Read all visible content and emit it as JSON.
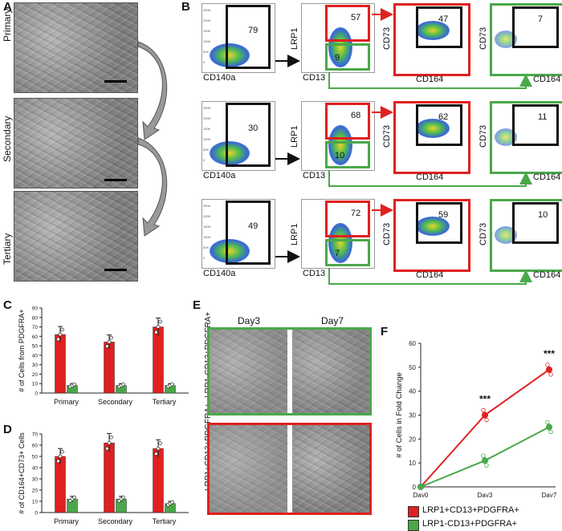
{
  "panels": {
    "A": "A",
    "B": "B",
    "C": "C",
    "D": "D",
    "E": "E",
    "F": "F"
  },
  "panelA": {
    "rows": [
      "Primary",
      "Secondary",
      "Tertiary"
    ]
  },
  "panelB": {
    "axis": {
      "cd140a": "CD140a",
      "lrp1": "LRP1",
      "cd13": "CD13",
      "cd73": "CD73",
      "cd164": "CD164"
    },
    "tick_labels": [
      "250K",
      "200K",
      "150K",
      "100K",
      "50K",
      "0"
    ],
    "rows": [
      {
        "pdgfra": "79",
        "lrp1_pos": "57",
        "lrp1_neg": "9",
        "cd73_pos": "47",
        "cd73_neg": "7"
      },
      {
        "pdgfra": "30",
        "lrp1_pos": "68",
        "lrp1_neg": "10",
        "cd73_pos": "62",
        "cd73_neg": "11"
      },
      {
        "pdgfra": "49",
        "lrp1_pos": "72",
        "lrp1_neg": "7",
        "cd73_pos": "59",
        "cd73_neg": "10"
      }
    ]
  },
  "colors": {
    "red": "#e02020",
    "green": "#4aa84a",
    "black": "#111111"
  },
  "chart_data": [
    {
      "panel": "C",
      "type": "bar",
      "categories": [
        "Primary",
        "Secondary",
        "Tertiary"
      ],
      "series": [
        {
          "color": "#e02020",
          "values": [
            62,
            54,
            70
          ]
        },
        {
          "color": "#4aa84a",
          "values": [
            8,
            8,
            8
          ]
        }
      ],
      "ylabel": "# of Cells from PDGFRA+",
      "ylim": [
        0,
        90
      ],
      "yticks": [
        "0",
        "10",
        "20",
        "30",
        "40",
        "50",
        "60",
        "70",
        "80",
        "90"
      ]
    },
    {
      "panel": "D",
      "type": "bar",
      "categories": [
        "Primary",
        "Secondary",
        "Tertiary"
      ],
      "series": [
        {
          "color": "#e02020",
          "values": [
            50,
            62,
            57
          ]
        },
        {
          "color": "#4aa84a",
          "values": [
            12,
            12,
            8
          ]
        }
      ],
      "ylabel": "# of CD164+CD73+ Cells",
      "ylim": [
        0,
        70
      ],
      "yticks": [
        "0",
        "10",
        "20",
        "30",
        "40",
        "50",
        "60",
        "70"
      ]
    },
    {
      "panel": "F",
      "type": "line",
      "x": [
        "Day0",
        "Day3",
        "Day7"
      ],
      "series": [
        {
          "name": "LRP1+CD13+PDGFRA+",
          "color": "#e02020",
          "values": [
            0,
            30,
            49
          ]
        },
        {
          "name": "LRP1-CD13+PDGFRA+",
          "color": "#4aa84a",
          "values": [
            0,
            11,
            25
          ]
        }
      ],
      "ylabel": "# of Cells in Fold Change",
      "ylim": [
        0,
        60
      ],
      "yticks": [
        "0",
        "10",
        "20",
        "30",
        "40",
        "50",
        "60"
      ],
      "annotations": [
        "***",
        "***"
      ]
    }
  ],
  "panelE": {
    "days": [
      "Day3",
      "Day7"
    ],
    "rows": [
      "LRP1-CD13+PDGFRA+",
      "LRP1+CD13+PDGFRA+"
    ]
  },
  "legendF": [
    "LRP1+CD13+PDGFRA+",
    "LRP1-CD13+PDGFRA+"
  ]
}
